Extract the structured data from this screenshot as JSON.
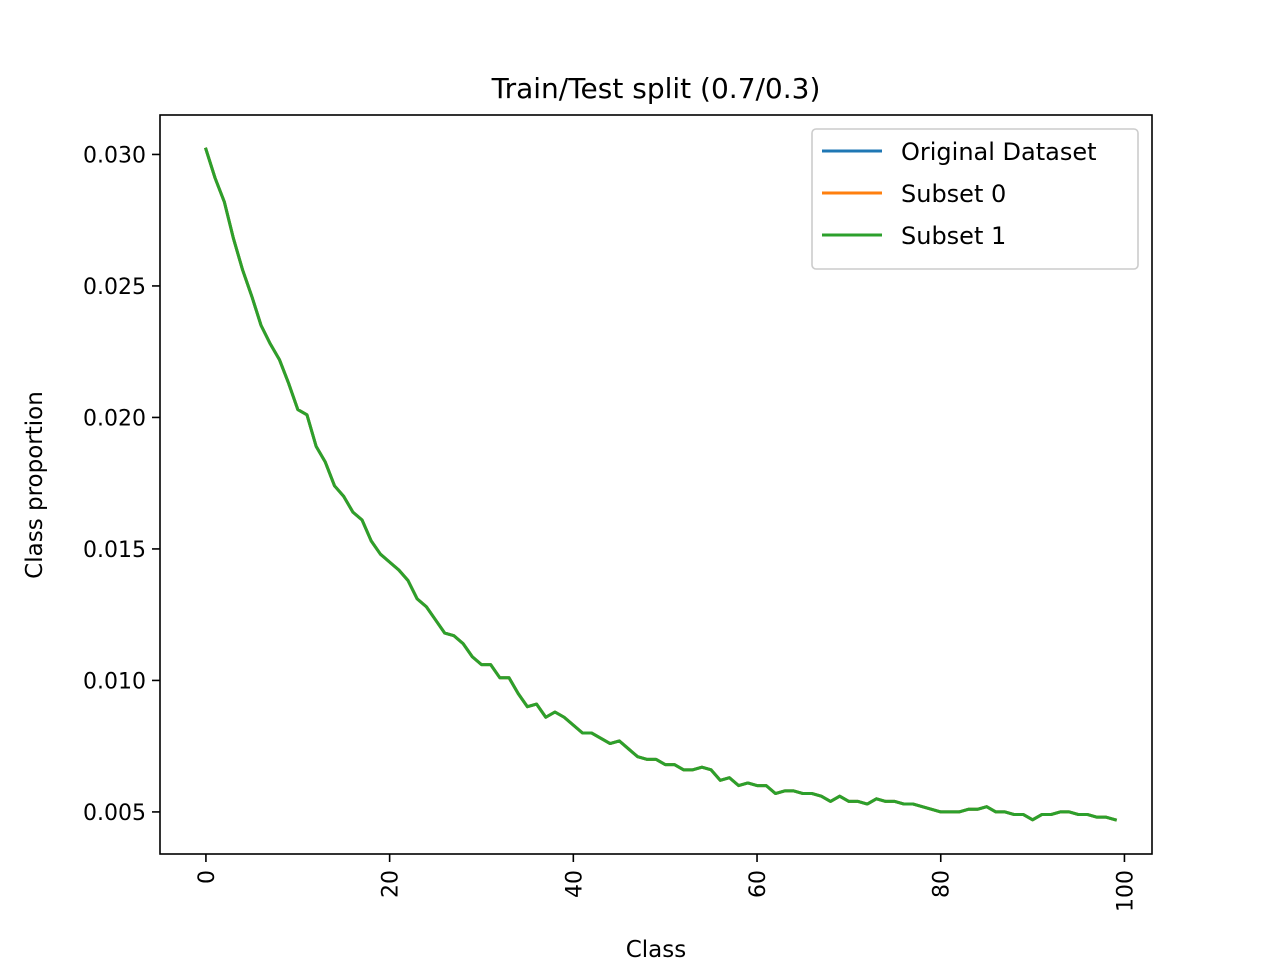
{
  "chart_data": {
    "type": "line",
    "title": "Train/Test split (0.7/0.3)",
    "xlabel": "Class",
    "ylabel": "Class proportion",
    "xlim": [
      -5,
      103
    ],
    "ylim": [
      0.0034,
      0.0315
    ],
    "xticks": [
      0,
      20,
      40,
      60,
      80,
      100
    ],
    "yticks": [
      0.005,
      0.01,
      0.015,
      0.02,
      0.025,
      0.03
    ],
    "ytick_labels": [
      "0.005",
      "0.010",
      "0.015",
      "0.020",
      "0.025",
      "0.030"
    ],
    "xtick_rotation": -90,
    "legend_position": "top-right",
    "x": [
      0,
      1,
      2,
      3,
      4,
      5,
      6,
      7,
      8,
      9,
      10,
      11,
      12,
      13,
      14,
      15,
      16,
      17,
      18,
      19,
      20,
      21,
      22,
      23,
      24,
      25,
      26,
      27,
      28,
      29,
      30,
      31,
      32,
      33,
      34,
      35,
      36,
      37,
      38,
      39,
      40,
      41,
      42,
      43,
      44,
      45,
      46,
      47,
      48,
      49,
      50,
      51,
      52,
      53,
      54,
      55,
      56,
      57,
      58,
      59,
      60,
      61,
      62,
      63,
      64,
      65,
      66,
      67,
      68,
      69,
      70,
      71,
      72,
      73,
      74,
      75,
      76,
      77,
      78,
      79,
      80,
      81,
      82,
      83,
      84,
      85,
      86,
      87,
      88,
      89,
      90,
      91,
      92,
      93,
      94,
      95,
      96,
      97,
      98,
      99
    ],
    "series": [
      {
        "name": "Original Dataset",
        "color": "#1f77b4",
        "values": [
          0.0302,
          0.0291,
          0.0282,
          0.0268,
          0.0256,
          0.0246,
          0.0235,
          0.0228,
          0.0222,
          0.0213,
          0.0203,
          0.0201,
          0.0189,
          0.0183,
          0.0174,
          0.017,
          0.0164,
          0.0161,
          0.0153,
          0.0148,
          0.0145,
          0.0142,
          0.0138,
          0.0131,
          0.0128,
          0.0123,
          0.0118,
          0.0117,
          0.0114,
          0.0109,
          0.0106,
          0.0106,
          0.0101,
          0.0101,
          0.0095,
          0.009,
          0.0091,
          0.0086,
          0.0088,
          0.0086,
          0.0083,
          0.008,
          0.008,
          0.0078,
          0.0076,
          0.0077,
          0.0074,
          0.0071,
          0.007,
          0.007,
          0.0068,
          0.0068,
          0.0066,
          0.0066,
          0.0067,
          0.0066,
          0.0062,
          0.0063,
          0.006,
          0.0061,
          0.006,
          0.006,
          0.0057,
          0.0058,
          0.0058,
          0.0057,
          0.0057,
          0.0056,
          0.0054,
          0.0056,
          0.0054,
          0.0054,
          0.0053,
          0.0055,
          0.0054,
          0.0054,
          0.0053,
          0.0053,
          0.0052,
          0.0051,
          0.005,
          0.005,
          0.005,
          0.0051,
          0.0051,
          0.0052,
          0.005,
          0.005,
          0.0049,
          0.0049,
          0.0047,
          0.0049,
          0.0049,
          0.005,
          0.005,
          0.0049,
          0.0049,
          0.0048,
          0.0048,
          0.0047
        ]
      },
      {
        "name": "Subset 0",
        "color": "#ff7f0e",
        "values": [
          0.0302,
          0.0291,
          0.0282,
          0.0268,
          0.0256,
          0.0246,
          0.0235,
          0.0228,
          0.0222,
          0.0213,
          0.0203,
          0.0201,
          0.0189,
          0.0183,
          0.0174,
          0.017,
          0.0164,
          0.0161,
          0.0153,
          0.0148,
          0.0145,
          0.0142,
          0.0138,
          0.0131,
          0.0128,
          0.0123,
          0.0118,
          0.0117,
          0.0114,
          0.0109,
          0.0106,
          0.0106,
          0.0101,
          0.0101,
          0.0095,
          0.009,
          0.0091,
          0.0086,
          0.0088,
          0.0086,
          0.0083,
          0.008,
          0.008,
          0.0078,
          0.0076,
          0.0077,
          0.0074,
          0.0071,
          0.007,
          0.007,
          0.0068,
          0.0068,
          0.0066,
          0.0066,
          0.0067,
          0.0066,
          0.0062,
          0.0063,
          0.006,
          0.0061,
          0.006,
          0.006,
          0.0057,
          0.0058,
          0.0058,
          0.0057,
          0.0057,
          0.0056,
          0.0054,
          0.0056,
          0.0054,
          0.0054,
          0.0053,
          0.0055,
          0.0054,
          0.0054,
          0.0053,
          0.0053,
          0.0052,
          0.0051,
          0.005,
          0.005,
          0.005,
          0.0051,
          0.0051,
          0.0052,
          0.005,
          0.005,
          0.0049,
          0.0049,
          0.0047,
          0.0049,
          0.0049,
          0.005,
          0.005,
          0.0049,
          0.0049,
          0.0048,
          0.0048,
          0.0047
        ]
      },
      {
        "name": "Subset 1",
        "color": "#2ca02c",
        "values": [
          0.0302,
          0.0291,
          0.0282,
          0.0268,
          0.0256,
          0.0246,
          0.0235,
          0.0228,
          0.0222,
          0.0213,
          0.0203,
          0.0201,
          0.0189,
          0.0183,
          0.0174,
          0.017,
          0.0164,
          0.0161,
          0.0153,
          0.0148,
          0.0145,
          0.0142,
          0.0138,
          0.0131,
          0.0128,
          0.0123,
          0.0118,
          0.0117,
          0.0114,
          0.0109,
          0.0106,
          0.0106,
          0.0101,
          0.0101,
          0.0095,
          0.009,
          0.0091,
          0.0086,
          0.0088,
          0.0086,
          0.0083,
          0.008,
          0.008,
          0.0078,
          0.0076,
          0.0077,
          0.0074,
          0.0071,
          0.007,
          0.007,
          0.0068,
          0.0068,
          0.0066,
          0.0066,
          0.0067,
          0.0066,
          0.0062,
          0.0063,
          0.006,
          0.0061,
          0.006,
          0.006,
          0.0057,
          0.0058,
          0.0058,
          0.0057,
          0.0057,
          0.0056,
          0.0054,
          0.0056,
          0.0054,
          0.0054,
          0.0053,
          0.0055,
          0.0054,
          0.0054,
          0.0053,
          0.0053,
          0.0052,
          0.0051,
          0.005,
          0.005,
          0.005,
          0.0051,
          0.0051,
          0.0052,
          0.005,
          0.005,
          0.0049,
          0.0049,
          0.0047,
          0.0049,
          0.0049,
          0.005,
          0.005,
          0.0049,
          0.0049,
          0.0048,
          0.0048,
          0.0047
        ]
      }
    ]
  }
}
